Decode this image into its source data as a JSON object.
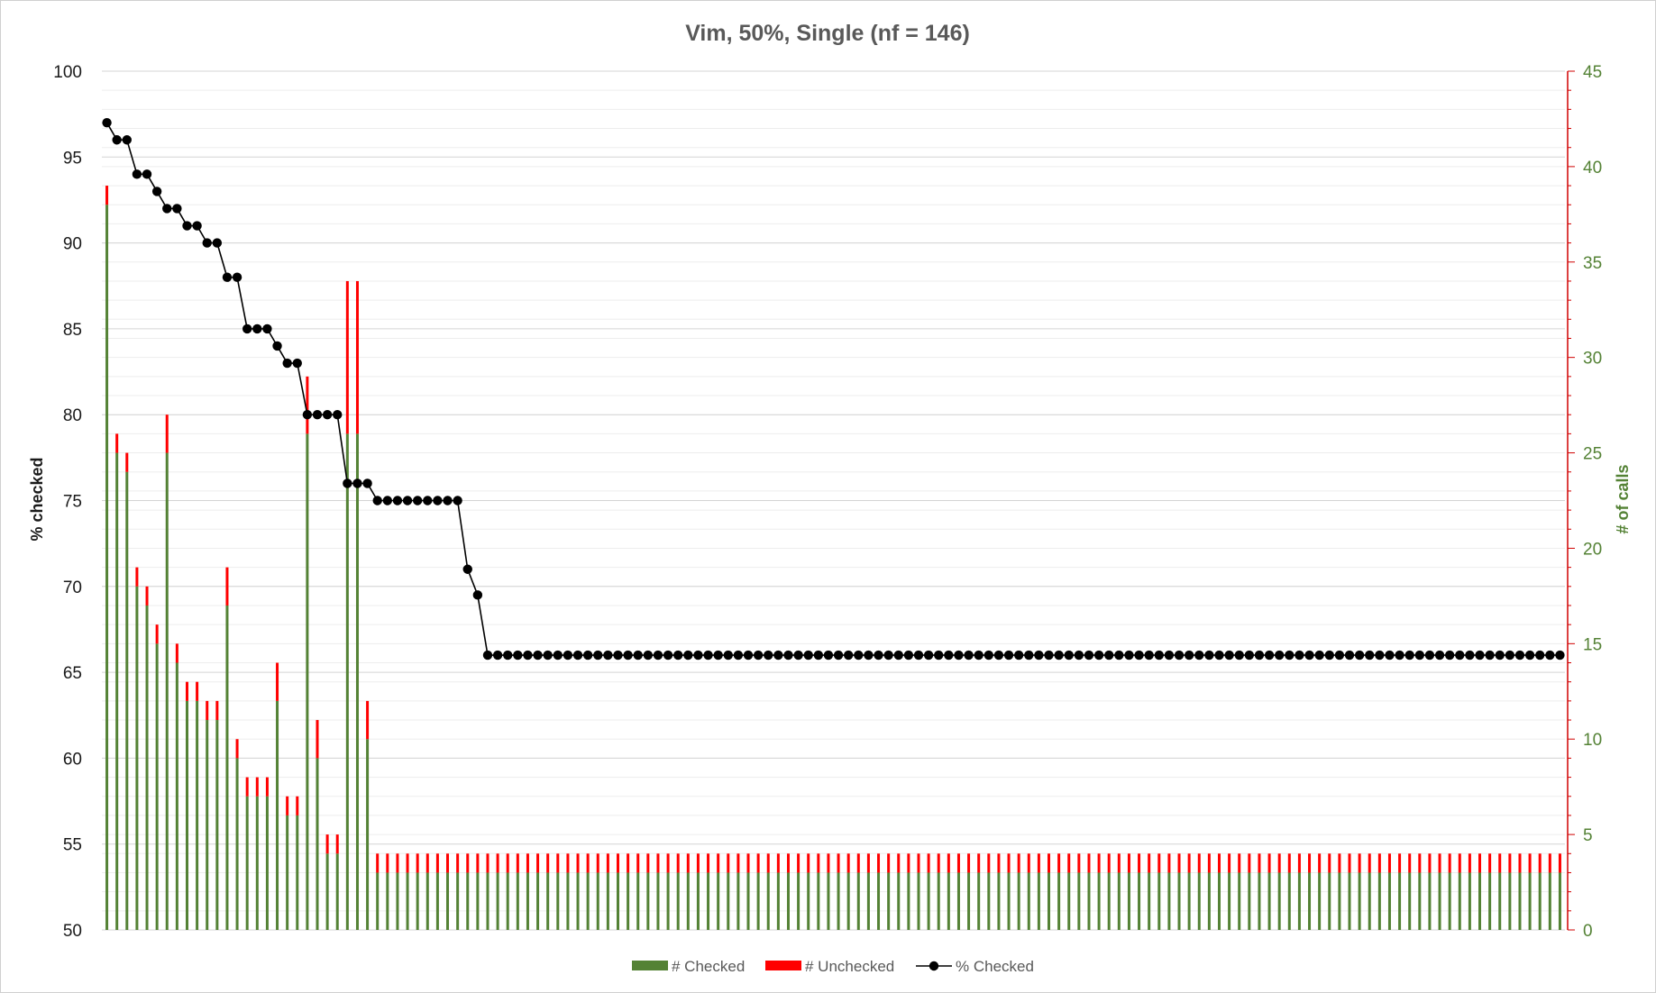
{
  "chart_data": {
    "type": "bar",
    "title": "Vim, 50%, Single (nf = 146)",
    "ylabel": "% checked",
    "y2label": "# of calls",
    "ylim": [
      50,
      100
    ],
    "y2lim": [
      0,
      45
    ],
    "yticks": [
      50,
      55,
      60,
      65,
      70,
      75,
      80,
      85,
      90,
      95,
      100
    ],
    "y2ticks": [
      0,
      5,
      10,
      15,
      20,
      25,
      30,
      35,
      40,
      45
    ],
    "grid": true,
    "legend_position": "bottom",
    "stacked": true,
    "colors": {
      "checked": "#548235",
      "unchecked": "#ff0000",
      "pct": "#000000"
    },
    "series": [
      {
        "name": "# Checked",
        "axis": "right",
        "values": [
          38,
          25,
          24,
          18,
          17,
          15,
          25,
          14,
          12,
          12,
          11,
          11,
          17,
          9,
          7,
          7,
          7,
          12,
          6,
          6,
          26,
          9,
          4,
          4,
          26,
          26,
          10,
          3,
          3,
          3,
          3,
          3,
          3,
          3,
          3,
          3,
          3,
          3,
          3,
          3,
          3,
          3,
          3,
          3,
          3,
          3,
          3,
          3,
          3,
          3,
          3,
          3,
          3,
          3,
          3,
          3,
          3,
          3,
          3,
          3,
          3,
          3,
          3,
          3,
          3,
          3,
          3,
          3,
          3,
          3,
          3,
          3,
          3,
          3,
          3,
          3,
          3,
          3,
          3,
          3,
          3,
          3,
          3,
          3,
          3,
          3,
          3,
          3,
          3,
          3,
          3,
          3,
          3,
          3,
          3,
          3,
          3,
          3,
          3,
          3,
          3,
          3,
          3,
          3,
          3,
          3,
          3,
          3,
          3,
          3,
          3,
          3,
          3,
          3,
          3,
          3,
          3,
          3,
          3,
          3,
          3,
          3,
          3,
          3,
          3,
          3,
          3,
          3,
          3,
          3,
          3,
          3,
          3,
          3,
          3,
          3,
          3,
          3,
          3,
          3,
          3,
          3,
          3,
          3,
          3,
          3
        ]
      },
      {
        "name": "# Unchecked",
        "axis": "right",
        "values": [
          1,
          1,
          1,
          1,
          1,
          1,
          2,
          1,
          1,
          1,
          1,
          1,
          2,
          1,
          1,
          1,
          1,
          2,
          1,
          1,
          3,
          2,
          1,
          1,
          8,
          8,
          2,
          1,
          1,
          1,
          1,
          1,
          1,
          1,
          1,
          1,
          1,
          1,
          1,
          1,
          1,
          1,
          1,
          1,
          1,
          1,
          1,
          1,
          1,
          1,
          1,
          1,
          1,
          1,
          1,
          1,
          1,
          1,
          1,
          1,
          1,
          1,
          1,
          1,
          1,
          1,
          1,
          1,
          1,
          1,
          1,
          1,
          1,
          1,
          1,
          1,
          1,
          1,
          1,
          1,
          1,
          1,
          1,
          1,
          1,
          1,
          1,
          1,
          1,
          1,
          1,
          1,
          1,
          1,
          1,
          1,
          1,
          1,
          1,
          1,
          1,
          1,
          1,
          1,
          1,
          1,
          1,
          1,
          1,
          1,
          1,
          1,
          1,
          1,
          1,
          1,
          1,
          1,
          1,
          1,
          1,
          1,
          1,
          1,
          1,
          1,
          1,
          1,
          1,
          1,
          1,
          1,
          1,
          1,
          1,
          1,
          1,
          1,
          1,
          1,
          1,
          1,
          1,
          1,
          1,
          1
        ]
      },
      {
        "name": "% Checked",
        "axis": "left",
        "type": "line",
        "values": [
          97,
          96,
          96,
          94,
          94,
          93,
          92,
          92,
          91,
          91,
          90,
          90,
          88,
          88,
          85,
          85,
          85,
          84,
          83,
          83,
          80,
          80,
          80,
          80,
          76,
          76,
          76,
          75,
          75,
          75,
          75,
          75,
          75,
          75,
          75,
          75,
          71,
          69.5,
          66,
          66,
          66,
          66,
          66,
          66,
          66,
          66,
          66,
          66,
          66,
          66,
          66,
          66,
          66,
          66,
          66,
          66,
          66,
          66,
          66,
          66,
          66,
          66,
          66,
          66,
          66,
          66,
          66,
          66,
          66,
          66,
          66,
          66,
          66,
          66,
          66,
          66,
          66,
          66,
          66,
          66,
          66,
          66,
          66,
          66,
          66,
          66,
          66,
          66,
          66,
          66,
          66,
          66,
          66,
          66,
          66,
          66,
          66,
          66,
          66,
          66,
          66,
          66,
          66,
          66,
          66,
          66,
          66,
          66,
          66,
          66,
          66,
          66,
          66,
          66,
          66,
          66,
          66,
          66,
          66,
          66,
          66,
          66,
          66,
          66,
          66,
          66,
          66,
          66,
          66,
          66,
          66,
          66,
          66,
          66,
          66,
          66,
          66,
          66,
          66,
          66,
          66,
          66,
          66,
          66,
          66,
          66
        ]
      }
    ],
    "legend": [
      {
        "key": "checked",
        "label": "# Checked"
      },
      {
        "key": "unchecked",
        "label": "# Unchecked"
      },
      {
        "key": "pct",
        "label": "% Checked"
      }
    ]
  }
}
